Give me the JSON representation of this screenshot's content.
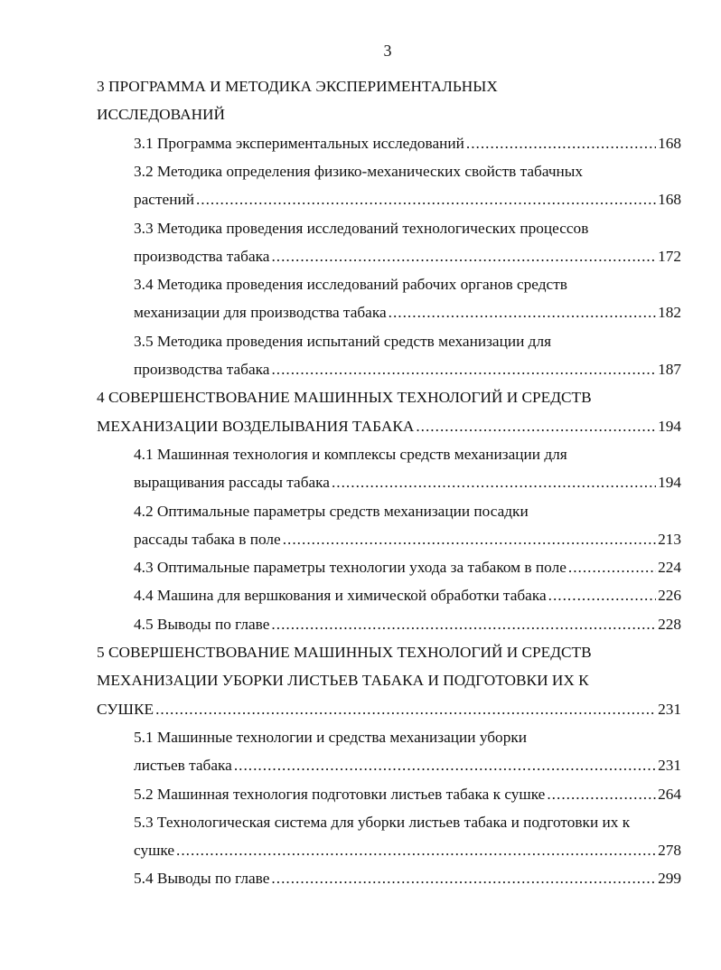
{
  "page_number": "3",
  "entries": [
    {
      "level": "chapter",
      "lines": [
        "3 ПРОГРАММА И МЕТОДИКА ЭКСПЕРИМЕНТАЛЬНЫХ",
        "ИССЛЕДОВАНИЙ"
      ],
      "page": ""
    },
    {
      "level": "section",
      "lines": [
        "3.1 Программа экспериментальных исследований"
      ],
      "page": "168"
    },
    {
      "level": "section",
      "lines": [
        "3.2 Методика определения физико-механических свойств табачных",
        "растений"
      ],
      "page": "168"
    },
    {
      "level": "section",
      "lines": [
        "3.3 Методика проведения исследований технологических процессов",
        "производства табака"
      ],
      "page": "172"
    },
    {
      "level": "section",
      "lines": [
        "3.4 Методика проведения исследований рабочих органов средств",
        "механизации для производства табака"
      ],
      "page": "182"
    },
    {
      "level": "section",
      "lines": [
        "3.5 Методика проведения испытаний средств механизации для",
        "производства табака"
      ],
      "page": "187"
    },
    {
      "level": "chapter",
      "lines": [
        "4 СОВЕРШЕНСТВОВАНИЕ МАШИННЫХ ТЕХНОЛОГИЙ И СРЕДСТВ",
        "МЕХАНИЗАЦИИ ВОЗДЕЛЫВАНИЯ ТАБАКА"
      ],
      "page": "194"
    },
    {
      "level": "section",
      "lines": [
        "4.1 Машинная  технология и комплексы средств механизации для",
        "выращивания рассады табака"
      ],
      "page": "194"
    },
    {
      "level": "section",
      "lines": [
        "4.2 Оптимальные параметры средств механизации посадки",
        "рассады табака в поле"
      ],
      "page": "213"
    },
    {
      "level": "section",
      "lines": [
        "4.3 Оптимальные параметры технологии ухода за табаком в поле"
      ],
      "page": "224"
    },
    {
      "level": "section",
      "lines": [
        "4.4 Машина для вершкования и химической обработки табака"
      ],
      "page": "226"
    },
    {
      "level": "section",
      "lines": [
        "4.5 Выводы по главе"
      ],
      "page": "228"
    },
    {
      "level": "chapter",
      "lines": [
        "5 СОВЕРШЕНСТВОВАНИЕ МАШИННЫХ ТЕХНОЛОГИЙ И СРЕДСТВ",
        "МЕХАНИЗАЦИИ УБОРКИ ЛИСТЬЕВ ТАБАКА И ПОДГОТОВКИ ИХ К",
        "СУШКЕ"
      ],
      "page": "231"
    },
    {
      "level": "section",
      "lines": [
        "5.1 Машинные технологии и средства механизации уборки",
        "листьев табака"
      ],
      "page": "231"
    },
    {
      "level": "section",
      "lines": [
        "5.2 Машинная  технология подготовки листьев табака к сушке"
      ],
      "page": "264"
    },
    {
      "level": "section",
      "lines": [
        "5.3 Технологическая система для уборки листьев табака и подготовки их к",
        "сушке"
      ],
      "page": "278"
    },
    {
      "level": "section",
      "lines": [
        "5.4 Выводы по главе"
      ],
      "page": "299"
    }
  ]
}
